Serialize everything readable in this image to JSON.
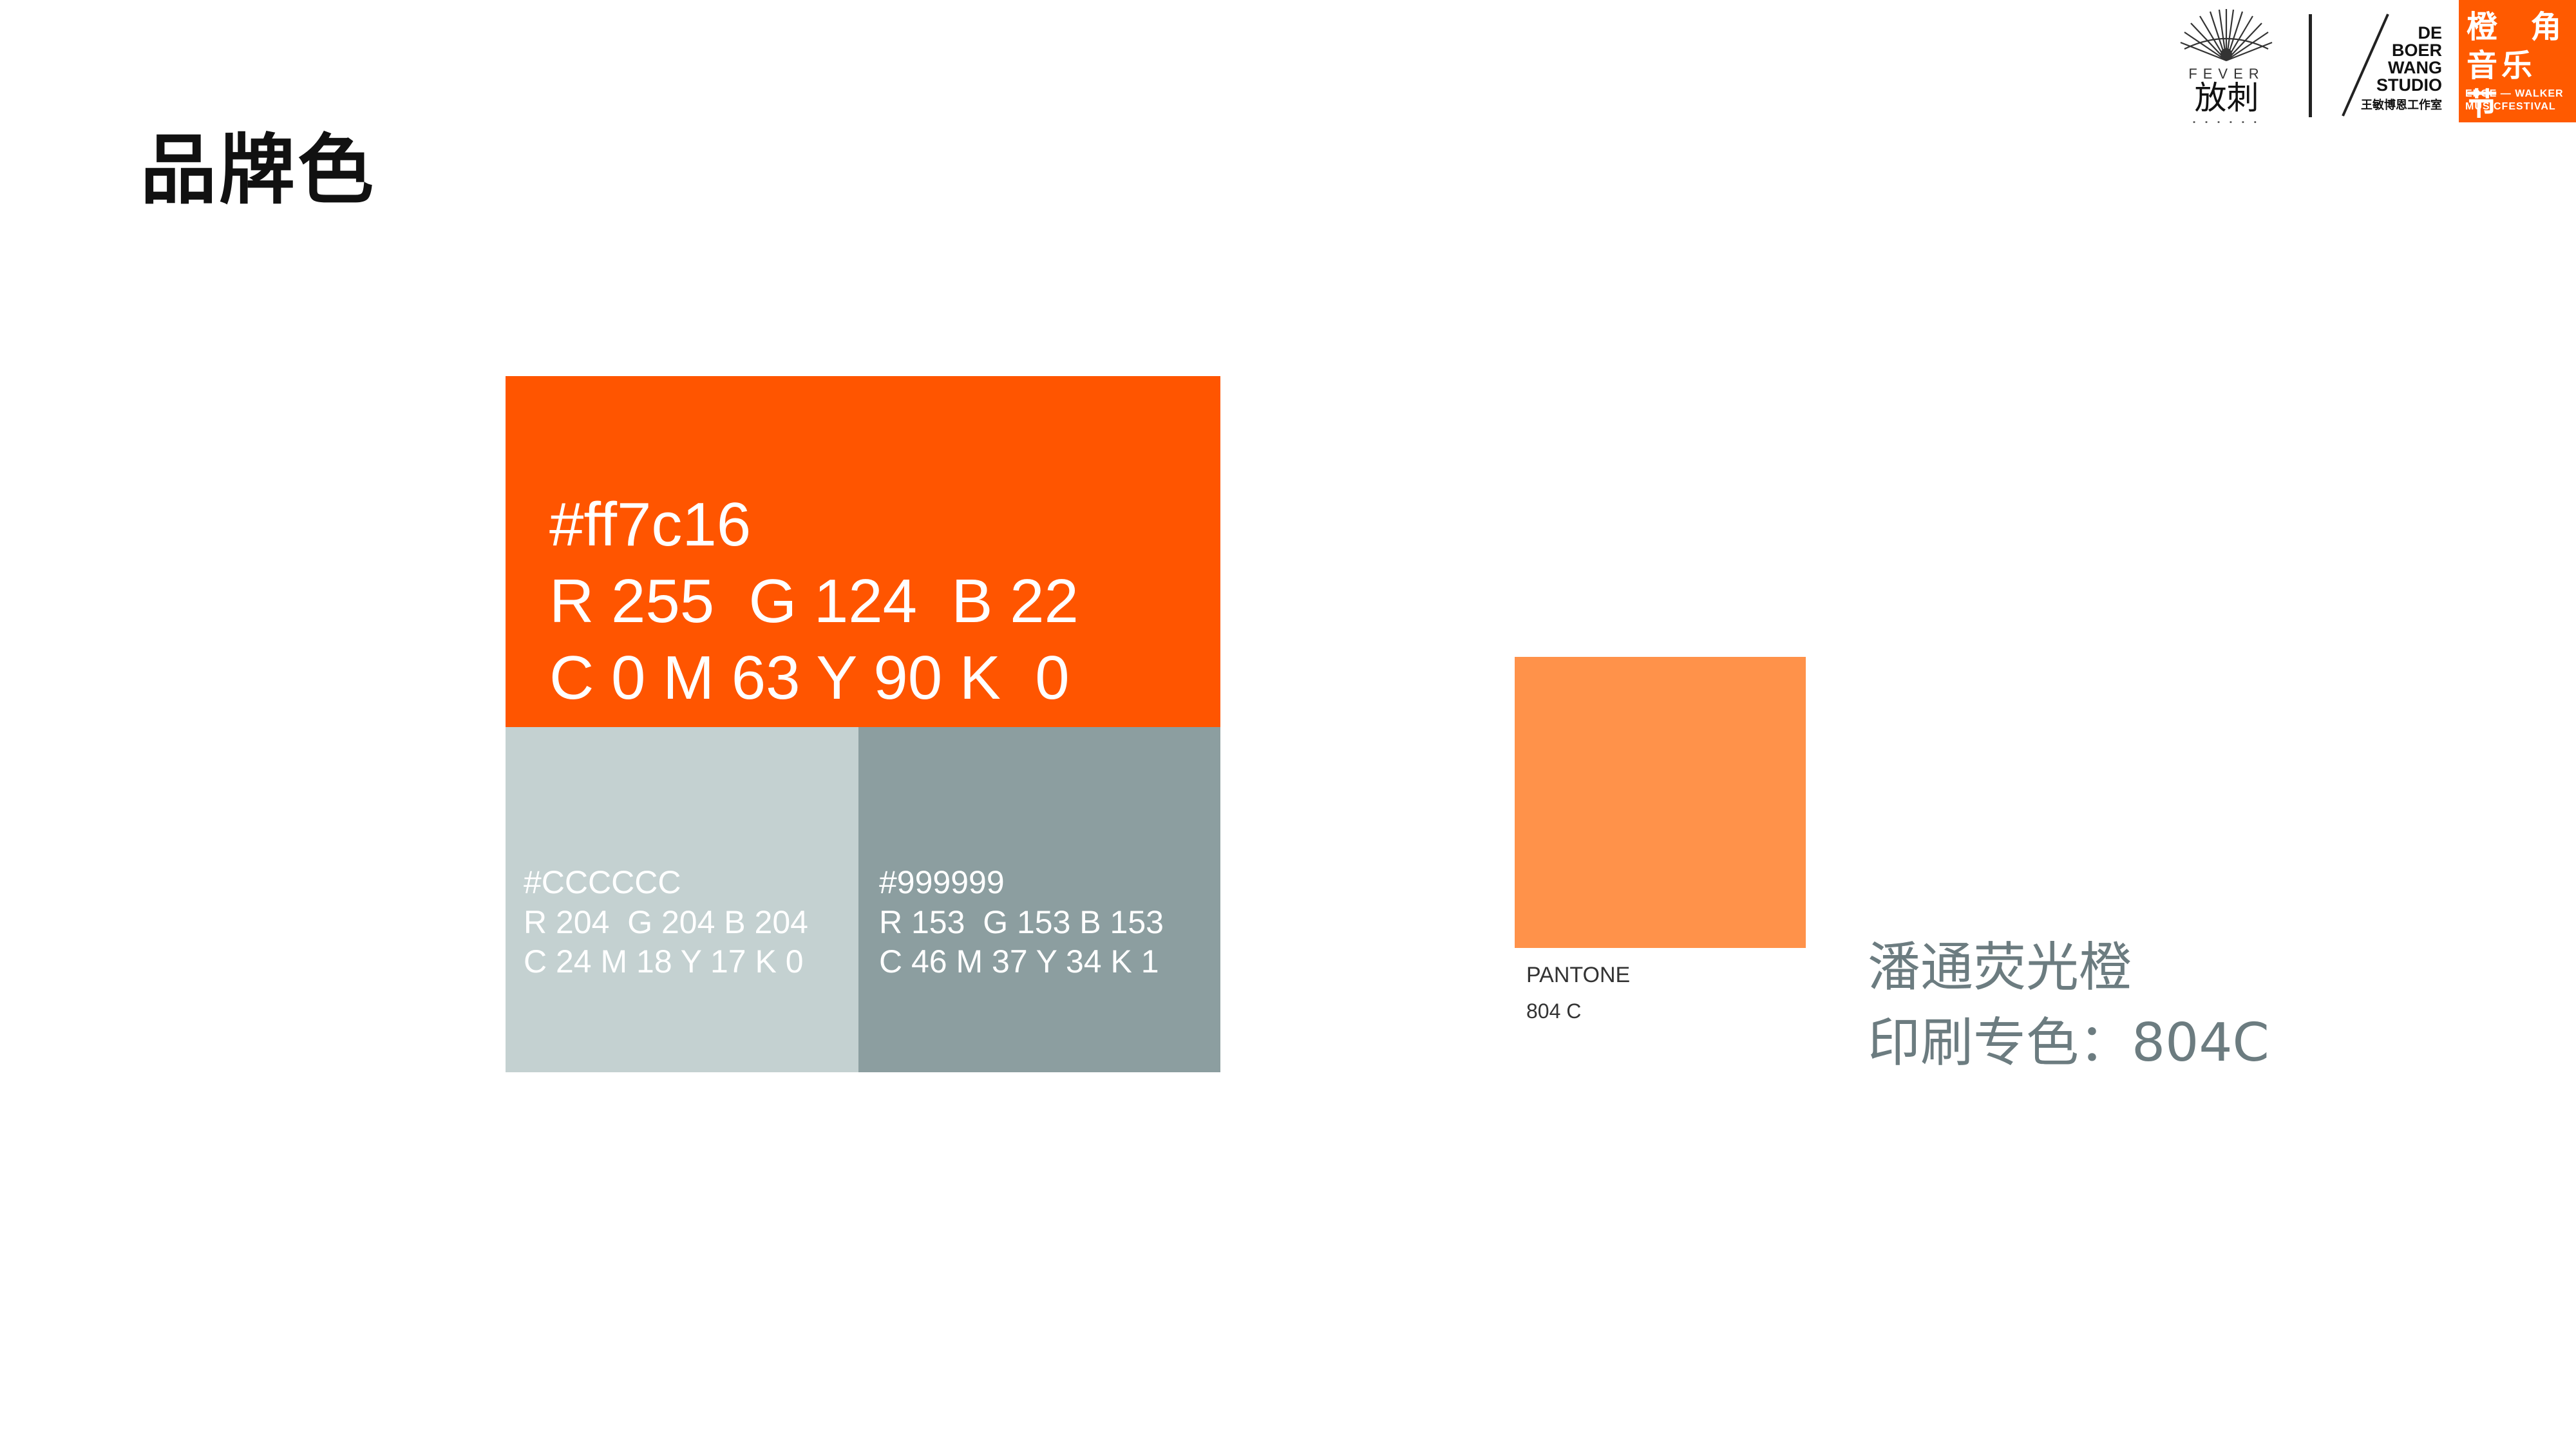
{
  "page": {
    "title": "品牌色"
  },
  "header": {
    "fever_logo": {
      "word": "FEVER",
      "cn": "放刺",
      "icon": "fan-burst-icon"
    },
    "studio_logo": {
      "lines": [
        "DE",
        "BOER",
        "WANG",
        "STUDIO"
      ],
      "cn": "王敏博恩工作室"
    },
    "festival_logo": {
      "cn_line1": "橙  角",
      "cn_line2": "音乐节",
      "en_line1": "EDGE — WALKER",
      "en_line2": "MUSICFESTIVAL",
      "bg_color": "#ff5a00"
    }
  },
  "swatches": {
    "primary": {
      "hex": "#ff7c16",
      "rgb": "R 255  G 124  B 22",
      "cmyk": "C 0 M 63 Y 90 K  0",
      "display_color": "#ff5500"
    },
    "light_gray": {
      "hex": "#CCCCCC",
      "rgb": "R 204  G 204 B 204",
      "cmyk": "C 24 M 18 Y 17 K 0",
      "display_color": "#c4d1d1"
    },
    "dark_gray": {
      "hex": "#999999",
      "rgb": "R 153  G 153 B 153",
      "cmyk": "C 46 M 37 Y 34 K 1",
      "display_color": "#8c9ea0"
    }
  },
  "pantone": {
    "label": "PANTONE",
    "code": "804 C",
    "chip_color": "#ff924a",
    "spot_name": "潘通荧光橙",
    "spot_code": "印刷专色：804C"
  }
}
